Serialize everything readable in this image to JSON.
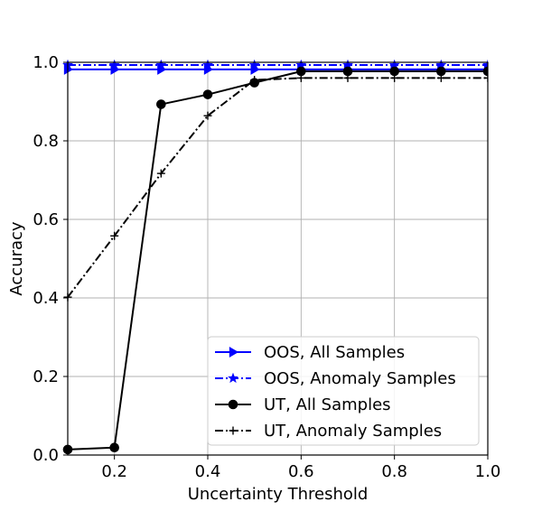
{
  "chart_data": {
    "type": "line",
    "xlabel": "Uncertainty Threshold",
    "ylabel": "Accuracy",
    "xlim": [
      0.1,
      1.0
    ],
    "ylim": [
      0.0,
      1.0
    ],
    "xticks": [
      "0.2",
      "0.4",
      "0.6",
      "0.8",
      "1.0"
    ],
    "yticks": [
      "0.0",
      "0.2",
      "0.4",
      "0.6",
      "0.8",
      "1.0"
    ],
    "grid": true,
    "legend_position": "lower-right",
    "x": [
      0.1,
      0.2,
      0.3,
      0.4,
      0.5,
      0.6,
      0.7,
      0.8,
      0.9,
      1.0
    ],
    "series": [
      {
        "name": "OOS, All Samples",
        "color": "#0000ff",
        "linestyle": "solid",
        "marker": "triangle-right",
        "values": [
          0.982,
          0.982,
          0.982,
          0.982,
          0.982,
          0.982,
          0.982,
          0.982,
          0.982,
          0.982
        ]
      },
      {
        "name": "OOS, Anomaly Samples",
        "color": "#0000ff",
        "linestyle": "dashdot",
        "marker": "star",
        "values": [
          0.993,
          0.993,
          0.993,
          0.993,
          0.993,
          0.993,
          0.993,
          0.993,
          0.993,
          0.993
        ]
      },
      {
        "name": "UT, All Samples",
        "color": "#000000",
        "linestyle": "solid",
        "marker": "circle",
        "values": [
          0.014,
          0.019,
          0.893,
          0.918,
          0.948,
          0.977,
          0.977,
          0.977,
          0.977,
          0.977
        ]
      },
      {
        "name": "UT, Anomaly Samples",
        "color": "#000000",
        "linestyle": "dashdot",
        "marker": "plus",
        "values": [
          0.402,
          0.558,
          0.717,
          0.864,
          0.955,
          0.96,
          0.96,
          0.96,
          0.96,
          0.96
        ]
      }
    ]
  }
}
